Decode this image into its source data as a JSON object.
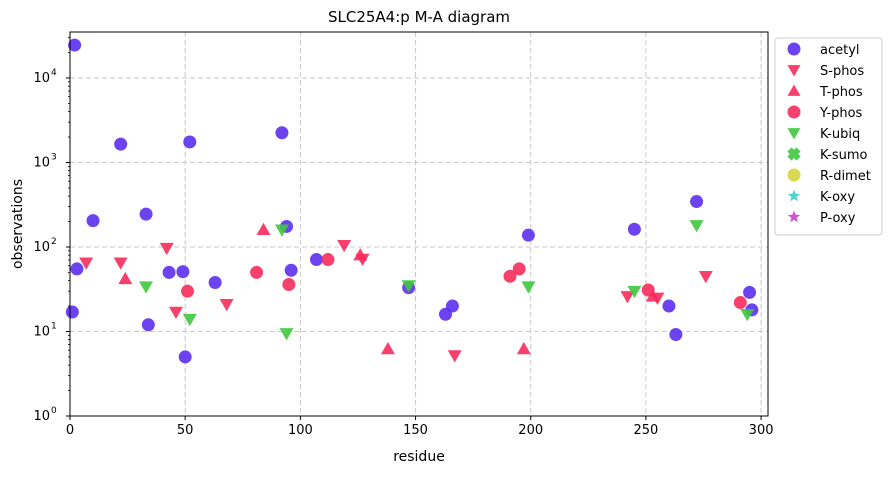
{
  "chart_data": {
    "type": "scatter",
    "title": "SLC25A4:p M-A diagram",
    "xlabel": "residue",
    "ylabel": "observations",
    "xlim": [
      0,
      303
    ],
    "ylim": [
      1,
      35000
    ],
    "y_scale": "log",
    "x_ticks": [
      0,
      50,
      100,
      150,
      200,
      250,
      300
    ],
    "x_tick_labels": [
      "0",
      "50",
      "100",
      "150",
      "200",
      "250",
      "300"
    ],
    "y_ticks": [
      1,
      10,
      100,
      1000,
      10000
    ],
    "y_tick_labels": [
      {
        "base": "10",
        "exp": "0"
      },
      {
        "base": "10",
        "exp": "1"
      },
      {
        "base": "10",
        "exp": "2"
      },
      {
        "base": "10",
        "exp": "3"
      },
      {
        "base": "10",
        "exp": "4"
      }
    ],
    "grid": true,
    "legend_position": "outside-right",
    "series": [
      {
        "name": "acetyl",
        "marker": "circle",
        "color": "#5b2ff0",
        "points": [
          [
            1,
            17
          ],
          [
            2,
            24500
          ],
          [
            3,
            55
          ],
          [
            10,
            205
          ],
          [
            22,
            1650
          ],
          [
            33,
            245
          ],
          [
            34,
            12
          ],
          [
            43,
            50
          ],
          [
            49,
            51
          ],
          [
            50,
            5
          ],
          [
            52,
            1750
          ],
          [
            63,
            38
          ],
          [
            92,
            2250
          ],
          [
            94,
            175
          ],
          [
            96,
            53
          ],
          [
            107,
            71
          ],
          [
            147,
            33
          ],
          [
            163,
            16
          ],
          [
            166,
            20
          ],
          [
            199,
            138
          ],
          [
            245,
            162
          ],
          [
            260,
            20
          ],
          [
            263,
            9.2
          ],
          [
            272,
            345
          ],
          [
            295,
            29
          ],
          [
            296,
            18
          ]
        ]
      },
      {
        "name": "S-phos",
        "marker": "triangle-down",
        "color": "#f62c5c",
        "points": [
          [
            7,
            65
          ],
          [
            22,
            65
          ],
          [
            42,
            97
          ],
          [
            46,
            17
          ],
          [
            68,
            21
          ],
          [
            119,
            105
          ],
          [
            127,
            72
          ],
          [
            167,
            5.2
          ],
          [
            242,
            26
          ],
          [
            255,
            25
          ],
          [
            276,
            45
          ]
        ]
      },
      {
        "name": "T-phos",
        "marker": "triangle-up",
        "color": "#f62c5c",
        "points": [
          [
            24,
            42
          ],
          [
            84,
            160
          ],
          [
            126,
            80
          ],
          [
            138,
            6.2
          ],
          [
            197,
            6.2
          ],
          [
            253,
            26
          ]
        ]
      },
      {
        "name": "Y-phos",
        "marker": "circle",
        "color": "#f62c5c",
        "points": [
          [
            51,
            30
          ],
          [
            81,
            50
          ],
          [
            95,
            36
          ],
          [
            112,
            71
          ],
          [
            191,
            45
          ],
          [
            195,
            55
          ],
          [
            251,
            31
          ],
          [
            291,
            22
          ]
        ]
      },
      {
        "name": "K-ubiq",
        "marker": "triangle-down",
        "color": "#3ec83e",
        "points": [
          [
            33,
            34
          ],
          [
            52,
            14
          ],
          [
            92,
            160
          ],
          [
            94,
            9.5
          ],
          [
            147,
            35
          ],
          [
            199,
            34
          ],
          [
            245,
            30
          ],
          [
            272,
            180
          ],
          [
            294,
            16
          ]
        ]
      },
      {
        "name": "K-sumo",
        "marker": "x",
        "color": "#3ec83e",
        "points": []
      },
      {
        "name": "R-dimet",
        "marker": "circle",
        "color": "#d4d43e",
        "points": []
      },
      {
        "name": "K-oxy",
        "marker": "star",
        "color": "#3ecbcb",
        "points": []
      },
      {
        "name": "P-oxy",
        "marker": "star",
        "color": "#cb3ecb",
        "points": []
      }
    ]
  }
}
